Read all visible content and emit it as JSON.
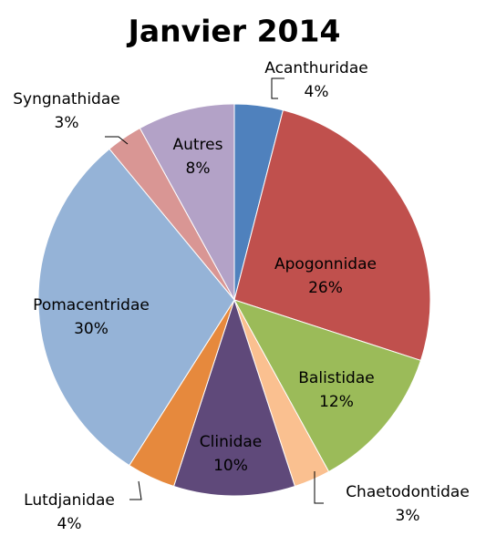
{
  "chart_data": {
    "type": "pie",
    "title": "Janvier 2014",
    "categories": [
      "Acanthuridae",
      "Apogonnidae",
      "Balistidae",
      "Chaetodontidae",
      "Clinidae",
      "Lutdjanidae",
      "Pomacentridae",
      "Syngnathidae",
      "Autres"
    ],
    "values": [
      4,
      26,
      12,
      3,
      10,
      4,
      30,
      3,
      8
    ],
    "value_labels": [
      "4%",
      "26%",
      "12%",
      "3%",
      "10%",
      "4%",
      "30%",
      "3%",
      "8%"
    ],
    "colors": [
      "#4f81bd",
      "#c0504d",
      "#9bbb59",
      "#fac090",
      "#5f497a",
      "#e6893d",
      "#95b3d7",
      "#d99694",
      "#b3a2c7"
    ]
  }
}
